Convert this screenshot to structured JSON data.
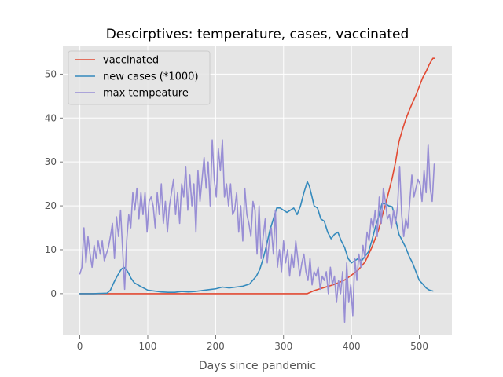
{
  "chart_data": {
    "type": "line",
    "title": "Descirptives: temperature, cases, vaccinated",
    "xlabel": "Days since pandemic",
    "ylabel": "",
    "xlim": [
      -25,
      548
    ],
    "ylim": [
      -9.5,
      56.5
    ],
    "xticks": [
      0,
      100,
      200,
      300,
      400,
      500
    ],
    "yticks": [
      0,
      10,
      20,
      30,
      40,
      50
    ],
    "grid": true,
    "legend_position": "top-left",
    "colors": {
      "plot_background": "#e5e5e5",
      "grid": "#ffffff",
      "tick_text": "#555555"
    },
    "series": [
      {
        "name": "vaccinated",
        "color": "#e24a33",
        "x": [
          0,
          100,
          200,
          300,
          335,
          345,
          360,
          375,
          390,
          400,
          410,
          420,
          430,
          440,
          445,
          450,
          455,
          460,
          465,
          470,
          475,
          480,
          485,
          490,
          495,
          500,
          505,
          510,
          515,
          520,
          522
        ],
        "y": [
          0,
          0,
          0,
          0,
          0,
          0.7,
          1.4,
          2.1,
          3.1,
          4.2,
          5.4,
          7.2,
          10.5,
          14.5,
          17.5,
          20.2,
          23.2,
          26.3,
          30.0,
          34.6,
          37.3,
          39.7,
          41.7,
          43.5,
          45.2,
          47.2,
          49.2,
          50.6,
          52.3,
          53.6,
          53.6
        ]
      },
      {
        "name": "new cases (*1000)",
        "color": "#348abd",
        "x": [
          0,
          20,
          40,
          45,
          50,
          55,
          60,
          62,
          65,
          68,
          72,
          75,
          80,
          90,
          100,
          110,
          120,
          130,
          140,
          150,
          160,
          170,
          180,
          190,
          200,
          210,
          220,
          230,
          240,
          250,
          260,
          265,
          270,
          275,
          280,
          285,
          290,
          295,
          300,
          305,
          310,
          315,
          320,
          325,
          330,
          335,
          338,
          342,
          345,
          350,
          355,
          360,
          365,
          370,
          375,
          380,
          385,
          390,
          395,
          400,
          405,
          410,
          415,
          420,
          425,
          430,
          435,
          440,
          445,
          450,
          455,
          460,
          465,
          470,
          475,
          480,
          485,
          490,
          495,
          500,
          505,
          510,
          515,
          520
        ],
        "y": [
          0,
          0,
          0.1,
          0.8,
          2.5,
          4.0,
          5.3,
          5.7,
          6.0,
          5.6,
          4.6,
          3.6,
          2.5,
          1.6,
          0.8,
          0.6,
          0.4,
          0.3,
          0.3,
          0.5,
          0.4,
          0.5,
          0.7,
          0.9,
          1.1,
          1.5,
          1.3,
          1.5,
          1.7,
          2.2,
          4.0,
          5.5,
          8.0,
          11.0,
          14.5,
          17.0,
          19.5,
          19.5,
          19.0,
          18.5,
          19.0,
          19.5,
          18.0,
          20.0,
          23.0,
          25.5,
          24.5,
          22.0,
          20.0,
          19.5,
          17.0,
          16.5,
          14.0,
          12.5,
          13.5,
          14.0,
          12.0,
          10.5,
          8.0,
          7.0,
          7.5,
          8.0,
          7.5,
          8.5,
          9.5,
          12.0,
          15.0,
          17.5,
          20.5,
          20.5,
          20.0,
          19.8,
          17.0,
          13.5,
          12.0,
          10.5,
          8.5,
          7.0,
          5.0,
          3.0,
          2.2,
          1.3,
          0.8,
          0.6
        ]
      },
      {
        "name": "max tempeature",
        "color": "#988ed5",
        "x": [
          0,
          3,
          6,
          9,
          12,
          15,
          18,
          21,
          24,
          27,
          30,
          33,
          36,
          39,
          42,
          45,
          48,
          51,
          54,
          57,
          60,
          63,
          66,
          69,
          72,
          75,
          78,
          81,
          84,
          87,
          90,
          93,
          96,
          99,
          102,
          105,
          108,
          111,
          114,
          117,
          120,
          123,
          126,
          129,
          132,
          135,
          138,
          141,
          144,
          147,
          150,
          153,
          156,
          159,
          162,
          165,
          168,
          171,
          174,
          177,
          180,
          183,
          186,
          189,
          192,
          195,
          198,
          201,
          204,
          207,
          210,
          213,
          216,
          219,
          222,
          225,
          228,
          231,
          234,
          237,
          240,
          243,
          246,
          249,
          252,
          255,
          258,
          261,
          264,
          267,
          270,
          273,
          276,
          279,
          282,
          285,
          288,
          291,
          294,
          297,
          300,
          303,
          306,
          309,
          312,
          315,
          318,
          321,
          324,
          327,
          330,
          333,
          336,
          339,
          342,
          345,
          348,
          351,
          354,
          357,
          360,
          363,
          366,
          369,
          372,
          375,
          378,
          381,
          384,
          387,
          390,
          393,
          396,
          399,
          402,
          405,
          408,
          411,
          414,
          417,
          420,
          423,
          426,
          429,
          432,
          435,
          438,
          441,
          444,
          447,
          450,
          453,
          456,
          459,
          462,
          465,
          468,
          471,
          474,
          477,
          480,
          483,
          486,
          489,
          492,
          495,
          498,
          501,
          504,
          507,
          510,
          513,
          516,
          519,
          522
        ],
        "y": [
          4.5,
          6.0,
          15.0,
          7.0,
          13.0,
          9.0,
          6.0,
          11.0,
          8.0,
          12.0,
          9.0,
          12.0,
          7.5,
          9.0,
          10.5,
          13.0,
          16.0,
          8.0,
          17.5,
          13.0,
          19.0,
          10.0,
          1.0,
          12.0,
          18.0,
          15.0,
          23.0,
          19.0,
          24.0,
          17.0,
          23.0,
          18.0,
          23.0,
          14.0,
          21.0,
          22.0,
          20.0,
          15.0,
          23.0,
          18.0,
          25.0,
          16.0,
          21.0,
          14.0,
          20.0,
          23.0,
          26.0,
          18.0,
          23.0,
          16.0,
          25.0,
          22.0,
          29.0,
          19.0,
          27.0,
          20.0,
          25.0,
          14.0,
          28.0,
          21.0,
          26.0,
          31.0,
          24.0,
          30.0,
          20.0,
          35.0,
          26.0,
          22.0,
          33.0,
          28.0,
          35.0,
          22.0,
          25.0,
          20.0,
          25.0,
          18.0,
          19.0,
          23.0,
          14.0,
          20.0,
          12.0,
          24.0,
          18.0,
          16.0,
          13.0,
          21.0,
          19.0,
          9.0,
          20.0,
          8.0,
          13.0,
          17.0,
          7.0,
          12.0,
          15.0,
          9.0,
          19.0,
          6.0,
          10.0,
          5.0,
          12.0,
          7.0,
          10.0,
          4.0,
          9.0,
          6.0,
          12.0,
          8.0,
          4.0,
          7.0,
          9.0,
          5.0,
          3.0,
          8.0,
          2.0,
          5.0,
          4.0,
          6.0,
          1.0,
          4.0,
          3.0,
          5.0,
          0.0,
          6.0,
          2.0,
          4.0,
          -2.0,
          3.0,
          0.0,
          5.0,
          -6.5,
          7.0,
          -2.0,
          2.0,
          -5.0,
          8.0,
          3.0,
          9.0,
          6.0,
          11.0,
          8.0,
          14.0,
          12.0,
          17.0,
          15.0,
          19.0,
          13.0,
          22.0,
          16.0,
          24.0,
          21.0,
          17.0,
          18.0,
          15.0,
          19.0,
          16.0,
          20.0,
          29.0,
          18.0,
          13.0,
          17.0,
          15.0,
          21.0,
          27.0,
          22.0,
          24.0,
          26.0,
          25.0,
          21.0,
          28.0,
          23.0,
          34.0,
          24.0,
          21.0,
          29.5
        ]
      }
    ]
  }
}
